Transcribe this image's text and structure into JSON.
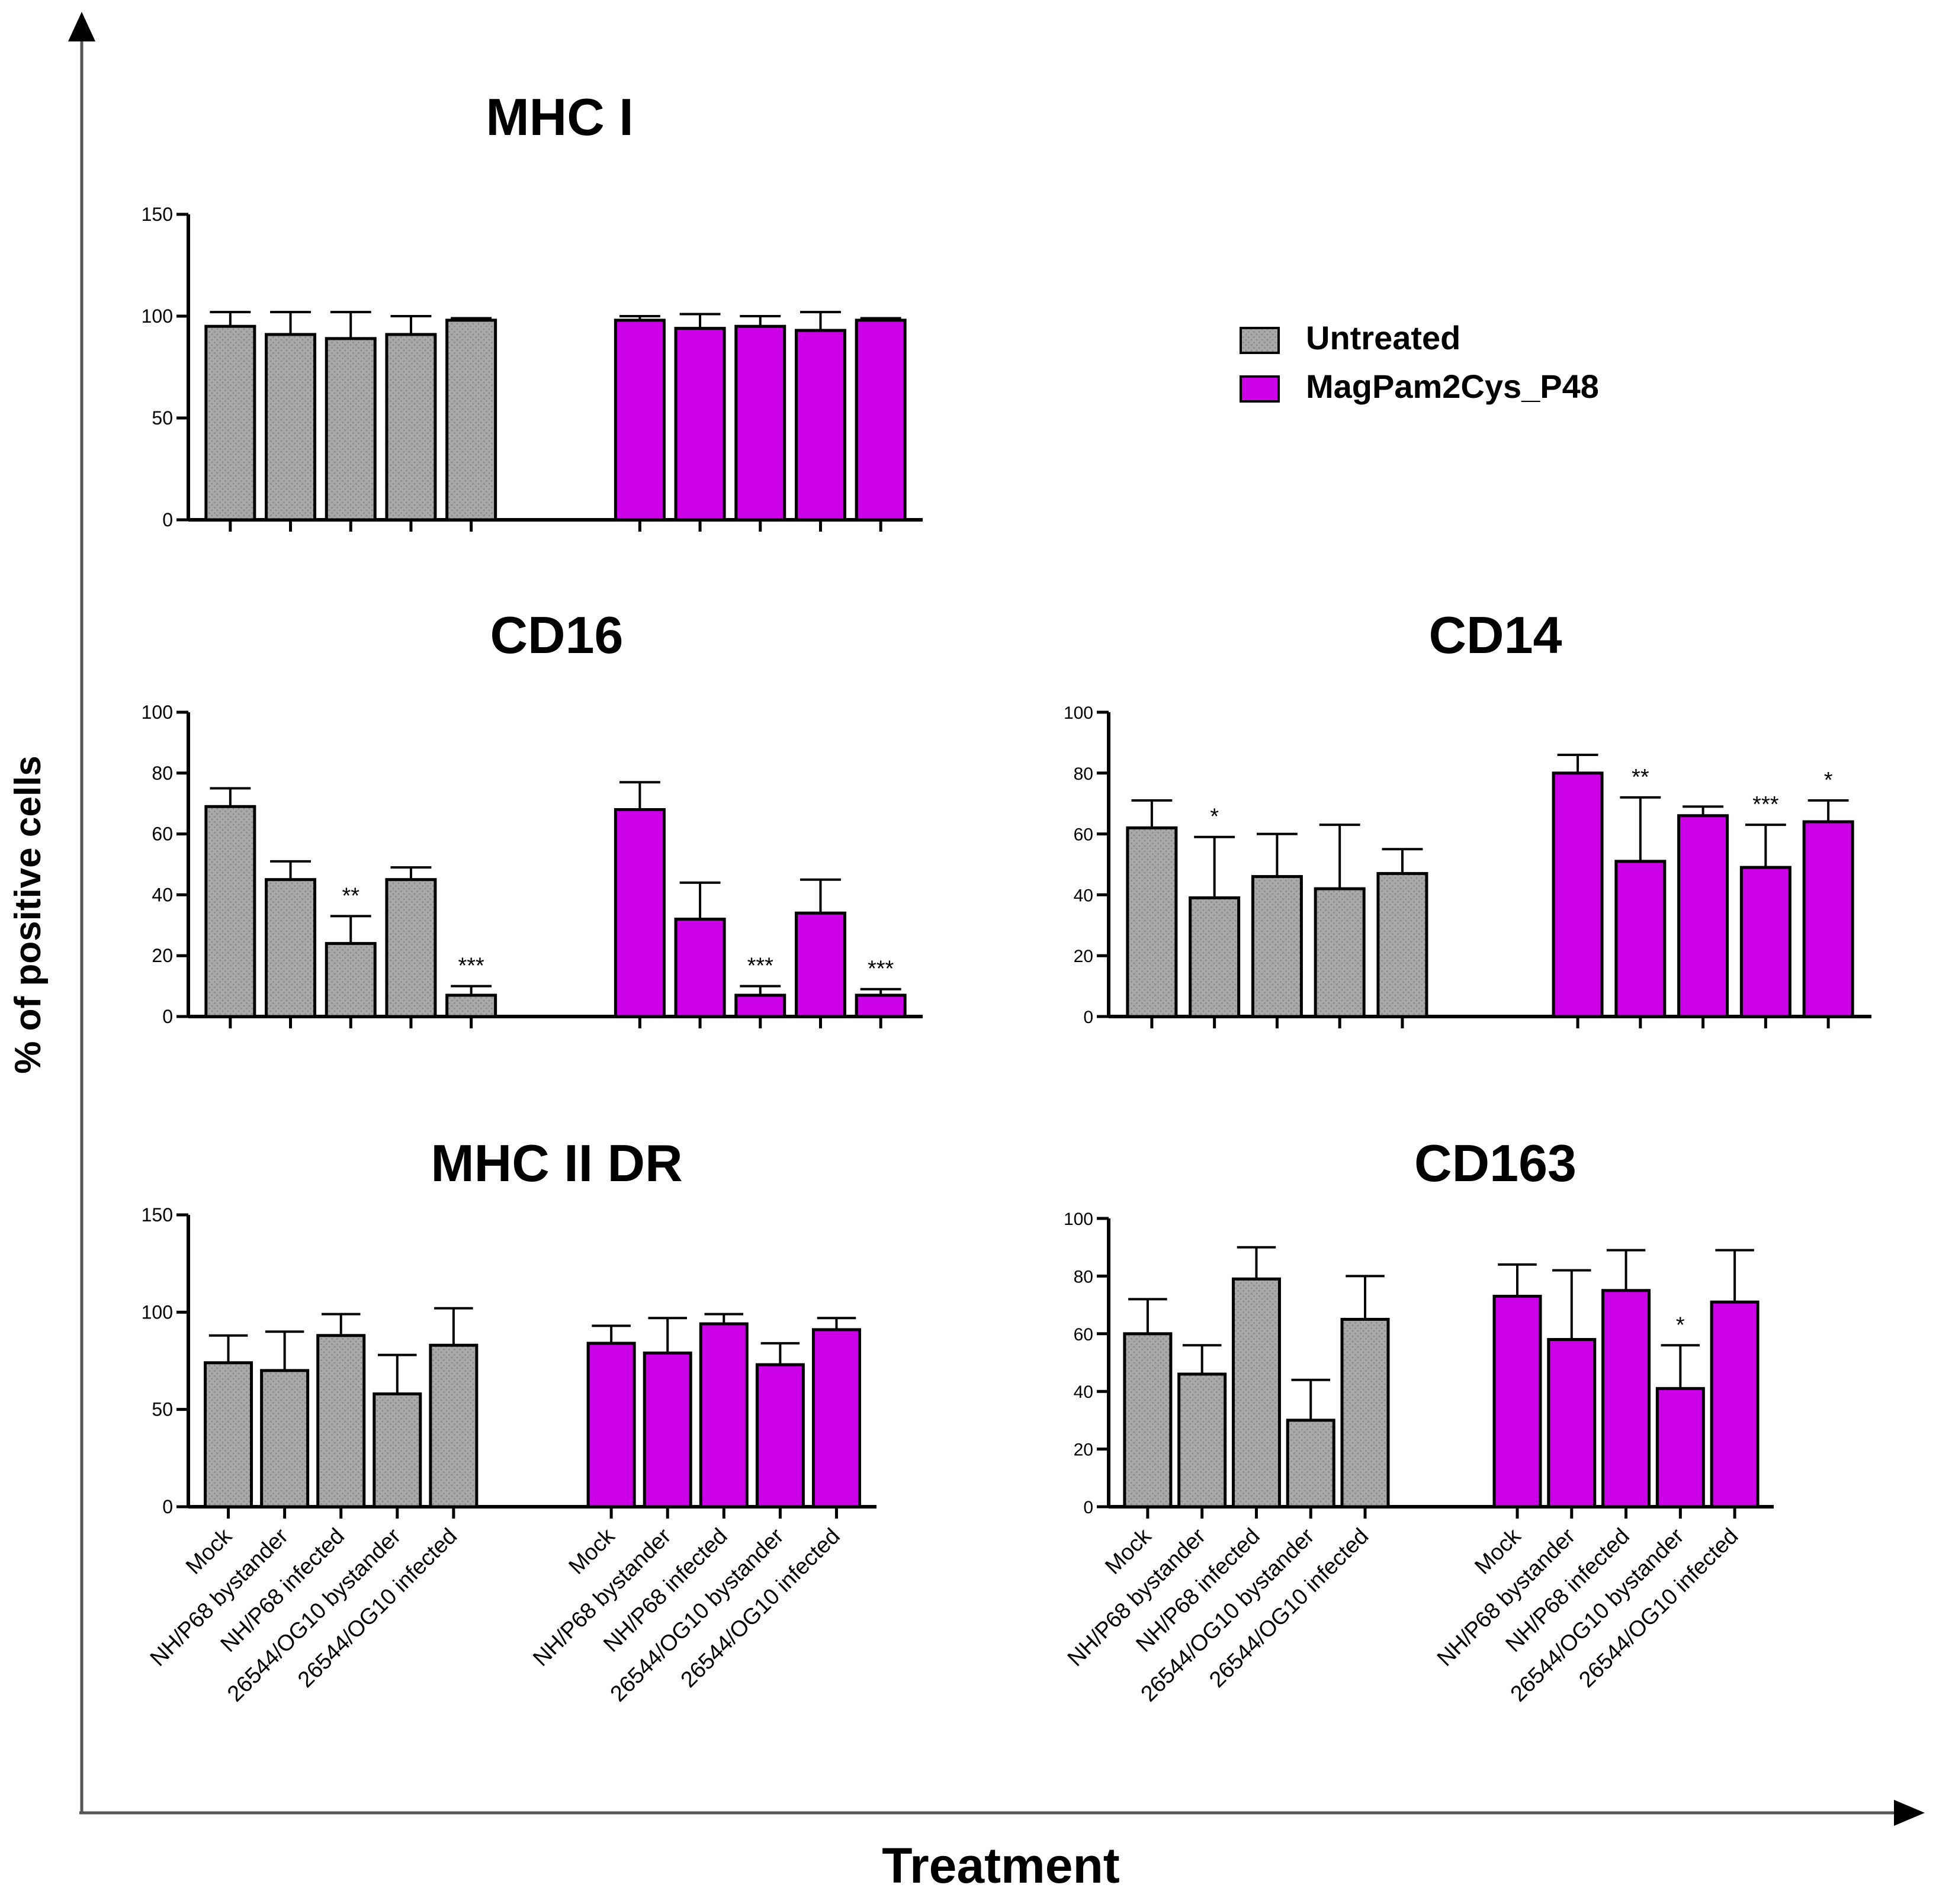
{
  "figure": {
    "y_axis_label": "% of positive cells",
    "x_axis_label": "Treatment"
  },
  "legend": {
    "items": [
      {
        "label": "Untreated",
        "color": "#aaaaaa",
        "pattern": "dotted"
      },
      {
        "label": "MagPam2Cys_P48",
        "color": "#cc00e6",
        "pattern": "solid"
      }
    ]
  },
  "categories": [
    "Mock",
    "NH/P68 bystander",
    "NH/P68 infected",
    "26544/OG10 bystander",
    "26544/OG10 infected"
  ],
  "colors": {
    "untreated": "#aaaaaa",
    "treated": "#cc00e6",
    "axis": "#000000",
    "error": "#000000"
  },
  "chart_data": [
    {
      "type": "bar",
      "title": "MHC I",
      "ylim": [
        0,
        150
      ],
      "yticks": [
        0,
        50,
        100,
        150
      ],
      "categories": [
        "Mock",
        "NH/P68 bystander",
        "NH/P68 infected",
        "26544/OG10 bystander",
        "26544/OG10 infected"
      ],
      "show_category_labels": false,
      "series": [
        {
          "name": "Untreated",
          "values": [
            95,
            91,
            89,
            91,
            98
          ],
          "errors": [
            7,
            11,
            13,
            9,
            1
          ],
          "significance": [
            "",
            "",
            "",
            "",
            ""
          ]
        },
        {
          "name": "MagPam2Cys_P48",
          "values": [
            98,
            94,
            95,
            93,
            98
          ],
          "errors": [
            2,
            7,
            5,
            9,
            1
          ],
          "significance": [
            "",
            "",
            "",
            "",
            ""
          ]
        }
      ]
    },
    {
      "type": "bar",
      "title": "CD16",
      "ylim": [
        0,
        100
      ],
      "yticks": [
        0,
        20,
        40,
        60,
        80,
        100
      ],
      "categories": [
        "Mock",
        "NH/P68 bystander",
        "NH/P68 infected",
        "26544/OG10 bystander",
        "26544/OG10 infected"
      ],
      "show_category_labels": false,
      "series": [
        {
          "name": "Untreated",
          "values": [
            69,
            45,
            24,
            45,
            7
          ],
          "errors": [
            6,
            6,
            9,
            4,
            3
          ],
          "significance": [
            "",
            "",
            "**",
            "",
            "***"
          ]
        },
        {
          "name": "MagPam2Cys_P48",
          "values": [
            68,
            32,
            7,
            34,
            7
          ],
          "errors": [
            9,
            12,
            3,
            11,
            2
          ],
          "significance": [
            "",
            "",
            "***",
            "",
            "***"
          ]
        }
      ]
    },
    {
      "type": "bar",
      "title": "CD14",
      "ylim": [
        0,
        100
      ],
      "yticks": [
        0,
        20,
        40,
        60,
        80,
        100
      ],
      "categories": [
        "Mock",
        "NH/P68 bystander",
        "NH/P68 infected",
        "26544/OG10 bystander",
        "26544/OG10 infected"
      ],
      "show_category_labels": false,
      "series": [
        {
          "name": "Untreated",
          "values": [
            62,
            39,
            46,
            42,
            47
          ],
          "errors": [
            9,
            20,
            14,
            21,
            8
          ],
          "significance": [
            "",
            "*",
            "",
            "",
            ""
          ]
        },
        {
          "name": "MagPam2Cys_P48",
          "values": [
            80,
            51,
            66,
            49,
            64
          ],
          "errors": [
            6,
            21,
            3,
            14,
            7
          ],
          "significance": [
            "",
            "**",
            "",
            "***",
            "*"
          ]
        }
      ]
    },
    {
      "type": "bar",
      "title": "MHC II DR",
      "ylim": [
        0,
        150
      ],
      "yticks": [
        0,
        50,
        100,
        150
      ],
      "categories": [
        "Mock",
        "NH/P68 bystander",
        "NH/P68 infected",
        "26544/OG10 bystander",
        "26544/OG10 infected"
      ],
      "show_category_labels": true,
      "series": [
        {
          "name": "Untreated",
          "values": [
            74,
            70,
            88,
            58,
            83
          ],
          "errors": [
            14,
            20,
            11,
            20,
            19
          ],
          "significance": [
            "",
            "",
            "",
            "",
            ""
          ]
        },
        {
          "name": "MagPam2Cys_P48",
          "values": [
            84,
            79,
            94,
            73,
            91
          ],
          "errors": [
            9,
            18,
            5,
            11,
            6
          ],
          "significance": [
            "",
            "",
            "",
            "",
            ""
          ]
        }
      ]
    },
    {
      "type": "bar",
      "title": "CD163",
      "ylim": [
        0,
        100
      ],
      "yticks": [
        0,
        20,
        40,
        60,
        80,
        100
      ],
      "categories": [
        "Mock",
        "NH/P68 bystander",
        "NH/P68 infected",
        "26544/OG10 bystander",
        "26544/OG10 infected"
      ],
      "show_category_labels": true,
      "series": [
        {
          "name": "Untreated",
          "values": [
            60,
            46,
            79,
            30,
            65
          ],
          "errors": [
            12,
            10,
            11,
            14,
            15
          ],
          "significance": [
            "",
            "",
            "",
            "",
            ""
          ]
        },
        {
          "name": "MagPam2Cys_P48",
          "values": [
            73,
            58,
            75,
            41,
            71
          ],
          "errors": [
            11,
            24,
            14,
            15,
            18
          ],
          "significance": [
            "",
            "",
            "",
            "*",
            ""
          ]
        }
      ]
    }
  ]
}
